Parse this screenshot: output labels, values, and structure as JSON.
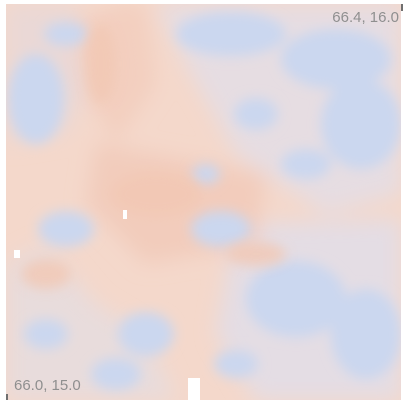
{
  "map": {
    "corner_ne_label": "66.4, 16.0",
    "corner_sw_label": "66.0, 15.0",
    "colors": {
      "warm": "#f2cbb8",
      "neutral": "#ecdfdd",
      "cool": "#c9d6f0",
      "nodata": "#ffffff",
      "label": "#8f8f8f"
    }
  }
}
